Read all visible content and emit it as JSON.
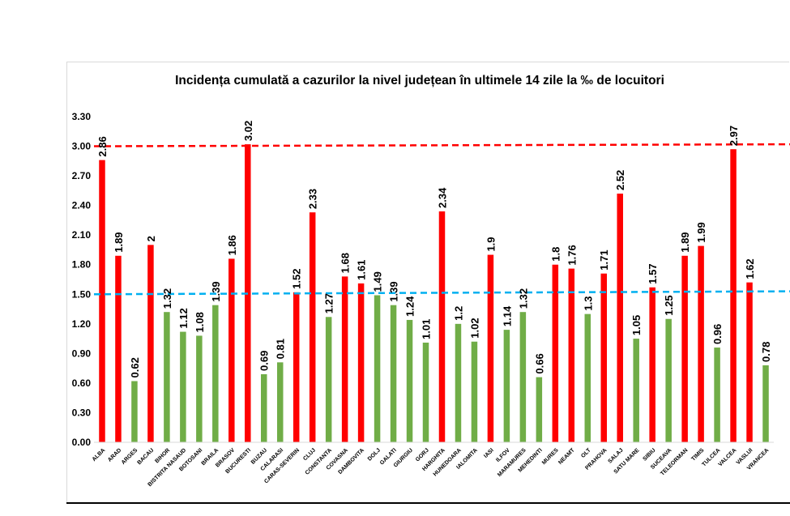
{
  "chart_data": {
    "type": "bar",
    "title": "Incidența cumulată a cazurilor la nivel județean în ultimele 14 zile la ‰ de locuitori",
    "xlabel": "",
    "ylabel": "",
    "ylim": [
      0,
      3.3
    ],
    "yticks": [
      "0.00",
      "0.30",
      "0.60",
      "0.90",
      "1.20",
      "1.50",
      "1.80",
      "2.10",
      "2.40",
      "2.70",
      "3.00",
      "3.30"
    ],
    "grid": false,
    "categories": [
      "ALBA",
      "ARAD",
      "ARGES",
      "BACAU",
      "BIHOR",
      "BISTRITA NASAUD",
      "BOTOSANI",
      "BRAILA",
      "BRASOV",
      "BUCURESTI",
      "BUZAU",
      "CALARASI",
      "CARAS-SEVERIN",
      "CLUJ",
      "CONSTANTA",
      "COVASNA",
      "DAMBOVITA",
      "DOLJ",
      "GALATI",
      "GIURGIU",
      "GORJ",
      "HARGHITA",
      "HUNEDOARA",
      "IALOMITA",
      "IASI",
      "ILFOV",
      "MARAMURES",
      "MEHEDINTI",
      "MURES",
      "NEAMT",
      "OLT",
      "PRAHOVA",
      "SALAJ",
      "SATU MARE",
      "SIBIU",
      "SUCEAVA",
      "TELEORMAN",
      "TIMIS",
      "TULCEA",
      "VALCEA",
      "VASLUI",
      "VRANCEA"
    ],
    "values": [
      2.86,
      1.89,
      0.62,
      2,
      1.32,
      1.12,
      1.08,
      1.39,
      1.86,
      3.02,
      0.69,
      0.81,
      1.52,
      2.33,
      1.27,
      1.68,
      1.61,
      1.49,
      1.39,
      1.24,
      1.01,
      2.34,
      1.2,
      1.02,
      1.9,
      1.14,
      1.32,
      0.66,
      1.8,
      1.76,
      1.3,
      1.71,
      2.52,
      1.05,
      1.57,
      1.25,
      1.89,
      1.99,
      0.96,
      2.97,
      1.62,
      0.78
    ],
    "value_labels": [
      "2.86",
      "1.89",
      "0.62",
      "2",
      "1.32",
      "1.12",
      "1.08",
      "1.39",
      "1.86",
      "3.02",
      "0.69",
      "0.81",
      "1.52",
      "2.33",
      "1.27",
      "1.68",
      "1.61",
      "1.49",
      "1.39",
      "1.24",
      "1.01",
      "2.34",
      "1.2",
      "1.02",
      "1.9",
      "1.14",
      "1.32",
      "0.66",
      "1.8",
      "1.76",
      "1.3",
      "1.71",
      "2.52",
      "1.05",
      "1.57",
      "1.25",
      "1.89",
      "1.99",
      "0.96",
      "2.97",
      "1.62",
      "0.78"
    ],
    "threshold_high": 1.5,
    "colors": {
      "high": "#ff0000",
      "low": "#70ad47",
      "upper_line": "#ff0000",
      "lower_line": "#00b0f0",
      "text": "#000000"
    },
    "reference_lines": [
      {
        "value": 3.0,
        "value_at_right": 3.02,
        "color": "#ff0000",
        "style": "dashed"
      },
      {
        "value": 1.5,
        "value_at_right": 1.53,
        "color": "#00b0f0",
        "style": "dashed"
      }
    ]
  }
}
